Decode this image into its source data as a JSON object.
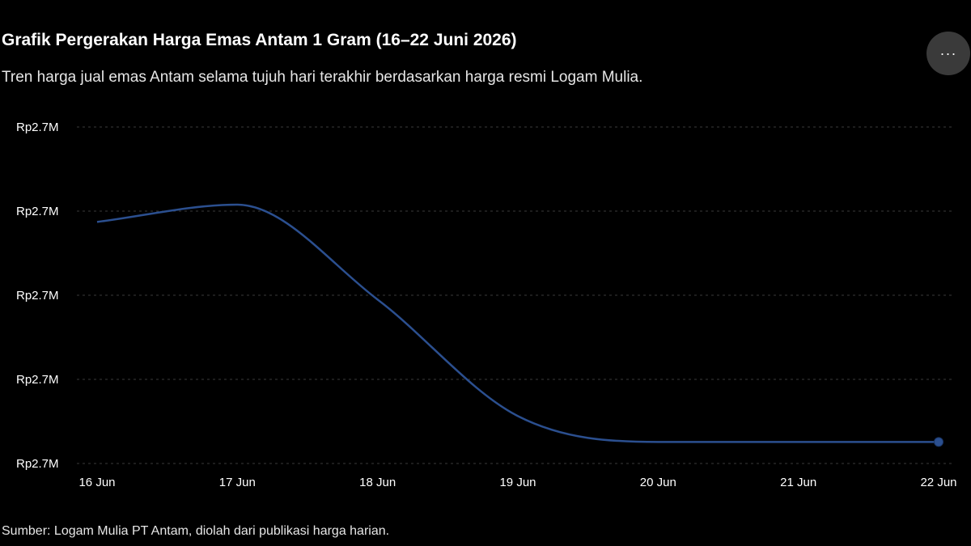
{
  "header": {
    "title": "Grafik Pergerakan Harga Emas Antam 1 Gram (16–22 Juni 2026)",
    "subtitle": "Tren harga jual emas Antam selama tujuh hari terakhir berdasarkan harga resmi Logam Mulia.",
    "more_label": "···",
    "more_icon": "more-horizontal-icon"
  },
  "footer": {
    "source": "Sumber: Logam Mulia PT Antam, diolah dari publikasi harga harian."
  },
  "colors": {
    "background": "#000000",
    "line": "#2b4f8f",
    "grid": "#3a3a3a",
    "text": "#ffffff"
  },
  "chart_data": {
    "type": "line",
    "title": "Grafik Pergerakan Harga Emas Antam 1 Gram (16–22 Juni 2026)",
    "xlabel": "",
    "ylabel": "",
    "categories": [
      "16 Jun",
      "17 Jun",
      "18 Jun",
      "19 Jun",
      "20 Jun",
      "21 Jun",
      "22 Jun"
    ],
    "series": [
      {
        "values": [
          2742000,
          2746000,
          2724000,
          2697000,
          2691000,
          2691000,
          2691000
        ]
      }
    ],
    "ylim": [
      2686000,
      2764000
    ],
    "y_ticks": [
      2686000,
      2705500,
      2725000,
      2744500,
      2764000
    ],
    "y_tick_labels": [
      "Rp2.7M",
      "Rp2.7M",
      "Rp2.7M",
      "Rp2.7M",
      "Rp2.7M"
    ],
    "smooth": true,
    "grid": "horizontal dashed",
    "legend": "none",
    "last_point_marker": true
  }
}
